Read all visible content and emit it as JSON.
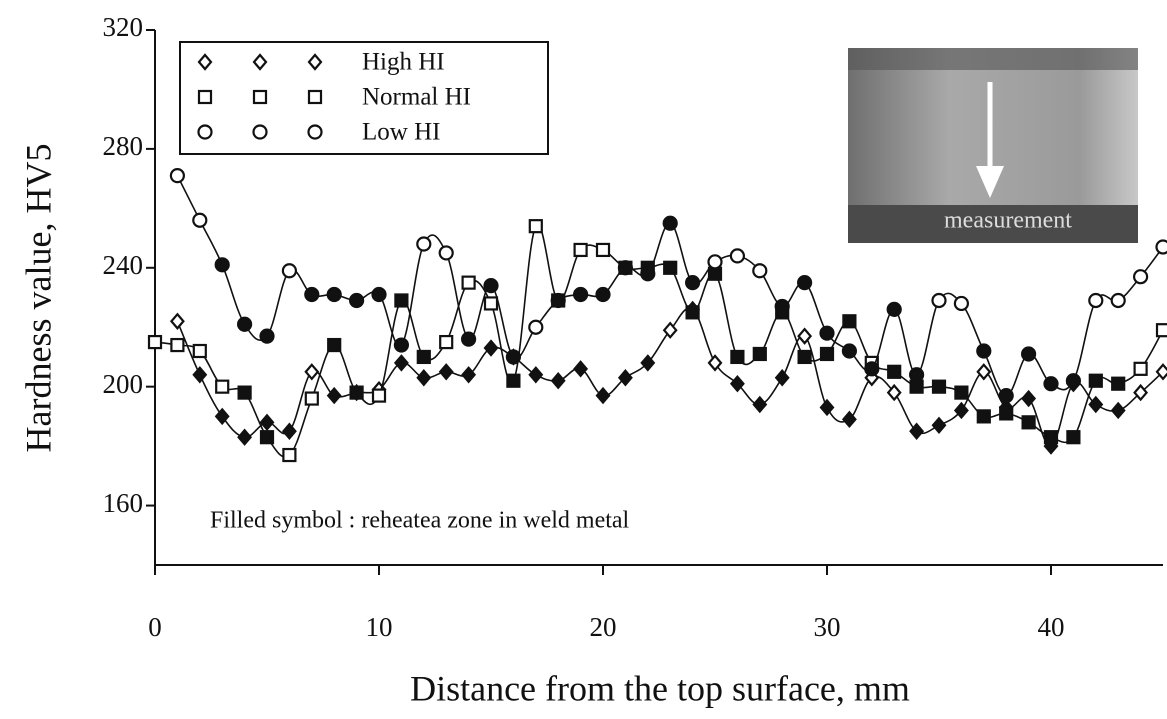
{
  "chart_data": {
    "type": "line",
    "x_label": "Distance from the top surface, mm",
    "y_label": "Hardness value, HV5",
    "annotation": "Filled symbol : reheatea zone in weld metal",
    "inset_label": "measurement",
    "xlim": [
      0,
      45
    ],
    "xticks": [
      0,
      10,
      20,
      30,
      40
    ],
    "ylim": [
      140,
      320
    ],
    "yticks": [
      160,
      200,
      240,
      280,
      320
    ],
    "x": [
      0,
      1,
      2,
      3,
      4,
      5,
      6,
      7,
      8,
      9,
      10,
      11,
      12,
      13,
      14,
      15,
      16,
      17,
      18,
      19,
      20,
      21,
      22,
      23,
      24,
      25,
      26,
      27,
      28,
      29,
      30,
      31,
      32,
      33,
      34,
      35,
      36,
      37,
      38,
      39,
      40,
      41,
      42,
      43,
      44,
      45
    ],
    "series": [
      {
        "name": "High HI",
        "marker": "diamond",
        "color": "#111111",
        "values": [
          null,
          222,
          204,
          190,
          183,
          188,
          185,
          205,
          197,
          198,
          199,
          208,
          203,
          205,
          204,
          213,
          210,
          204,
          202,
          206,
          197,
          203,
          208,
          219,
          226,
          208,
          201,
          194,
          203,
          217,
          193,
          189,
          203,
          198,
          185,
          187,
          192,
          205,
          193,
          196,
          180,
          201,
          194,
          192,
          198,
          205
        ],
        "filled": [
          false,
          false,
          true,
          true,
          true,
          true,
          true,
          false,
          true,
          true,
          false,
          true,
          true,
          true,
          true,
          true,
          true,
          true,
          true,
          true,
          true,
          true,
          true,
          false,
          true,
          false,
          true,
          true,
          true,
          false,
          true,
          true,
          false,
          false,
          true,
          true,
          true,
          false,
          true,
          true,
          true,
          true,
          true,
          true,
          false,
          false
        ]
      },
      {
        "name": "Normal HI",
        "marker": "square",
        "color": "#111111",
        "values": [
          215,
          214,
          212,
          200,
          198,
          183,
          177,
          196,
          214,
          198,
          197,
          229,
          210,
          215,
          235,
          228,
          202,
          254,
          229,
          246,
          246,
          240,
          240,
          240,
          225,
          238,
          210,
          211,
          225,
          210,
          211,
          222,
          208,
          205,
          200,
          200,
          198,
          190,
          191,
          188,
          183,
          183,
          202,
          201,
          206,
          219
        ],
        "filled": [
          false,
          false,
          false,
          false,
          true,
          true,
          false,
          false,
          true,
          true,
          false,
          true,
          true,
          false,
          false,
          false,
          true,
          false,
          true,
          false,
          false,
          true,
          true,
          true,
          true,
          true,
          true,
          true,
          true,
          true,
          true,
          true,
          false,
          true,
          true,
          true,
          true,
          true,
          true,
          true,
          true,
          true,
          true,
          true,
          false,
          false
        ]
      },
      {
        "name": "Low HI",
        "marker": "circle",
        "color": "#111111",
        "values": [
          null,
          271,
          256,
          241,
          221,
          217,
          239,
          231,
          231,
          229,
          231,
          214,
          248,
          245,
          216,
          234,
          210,
          220,
          229,
          231,
          231,
          240,
          238,
          255,
          235,
          242,
          244,
          239,
          227,
          235,
          218,
          212,
          206,
          226,
          204,
          229,
          228,
          212,
          197,
          211,
          201,
          202,
          229,
          229,
          237,
          247
        ],
        "filled": [
          false,
          false,
          false,
          true,
          true,
          true,
          false,
          true,
          true,
          true,
          true,
          true,
          false,
          false,
          true,
          true,
          true,
          false,
          true,
          true,
          true,
          true,
          true,
          true,
          true,
          false,
          false,
          false,
          true,
          true,
          true,
          true,
          true,
          true,
          true,
          false,
          false,
          true,
          true,
          true,
          true,
          true,
          false,
          false,
          false,
          false
        ]
      }
    ]
  }
}
